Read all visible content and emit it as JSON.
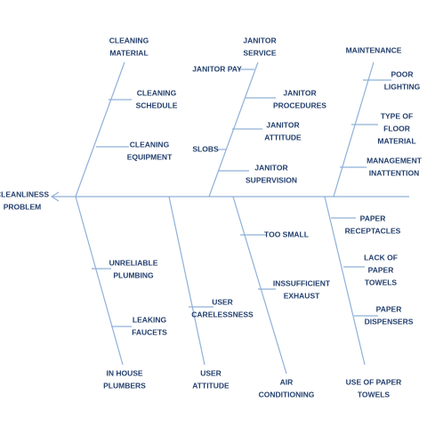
{
  "effect": {
    "label": [
      "CLEANLINESS",
      "PROBLEM"
    ]
  },
  "categories": [
    {
      "label": [
        "CLEANING",
        "MATERIAL"
      ],
      "causes": [
        {
          "label": [
            "CLEANING",
            "SCHEDULE"
          ]
        },
        {
          "label": [
            "CLEANING",
            "EQUIPMENT"
          ]
        }
      ]
    },
    {
      "label": [
        "JANITOR",
        "SERVICE"
      ],
      "causes": [
        {
          "label": [
            "JANITOR PAY"
          ]
        },
        {
          "label": [
            "JANITOR",
            "PROCEDURES"
          ]
        },
        {
          "label": [
            "JANITOR",
            "ATTITUDE"
          ]
        },
        {
          "label": [
            "SLOBS"
          ]
        },
        {
          "label": [
            "JANITOR",
            "SUPERVISION"
          ]
        }
      ]
    },
    {
      "label": [
        "MAINTENANCE"
      ],
      "causes": [
        {
          "label": [
            "POOR",
            "LIGHTING"
          ]
        },
        {
          "label": [
            "TYPE OF",
            "FLOOR",
            "MATERIAL"
          ]
        },
        {
          "label": [
            "MANAGEMENT",
            "INATTENTION"
          ]
        }
      ]
    },
    {
      "label": [
        "IN HOUSE",
        "PLUMBERS"
      ],
      "causes": [
        {
          "label": [
            "UNRELIABLE",
            "PLUMBING"
          ]
        },
        {
          "label": [
            "LEAKING",
            "FAUCETS"
          ]
        }
      ]
    },
    {
      "label": [
        "USER",
        "ATTITUDE"
      ],
      "causes": [
        {
          "label": [
            "USER",
            "CARELESSNESS"
          ]
        }
      ]
    },
    {
      "label": [
        "AIR",
        "CONDITIONING"
      ],
      "causes": [
        {
          "label": [
            "TOO SMALL"
          ]
        },
        {
          "label": [
            "INSSUFFICIENT",
            "EXHAUST"
          ]
        }
      ]
    },
    {
      "label": [
        "USE OF PAPER",
        "TOWELS"
      ],
      "causes": [
        {
          "label": [
            "PAPER",
            "RECEPTACLES"
          ]
        },
        {
          "label": [
            "LACK OF",
            "PAPER",
            "TOWELS"
          ]
        },
        {
          "label": [
            "PAPER",
            "DISPENSERS"
          ]
        }
      ]
    }
  ]
}
